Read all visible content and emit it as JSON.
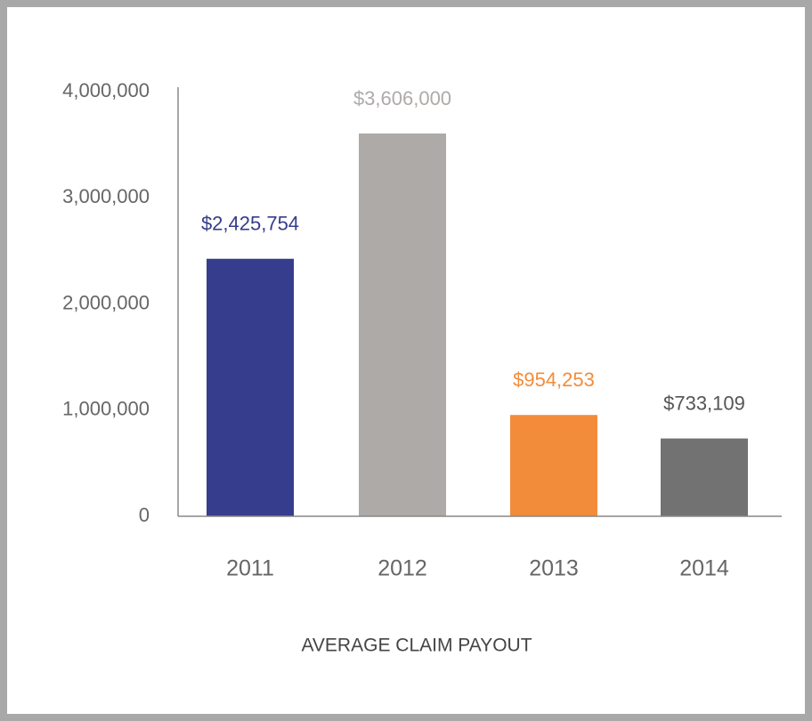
{
  "chart_data": {
    "type": "bar",
    "categories": [
      "2011",
      "2012",
      "2013",
      "2014"
    ],
    "values": [
      2425754,
      3606000,
      954253,
      733109
    ],
    "value_labels": [
      "$2,425,754",
      "$3,606,000",
      "$954,253",
      "$733,109"
    ],
    "colors": [
      "#363d8c",
      "#aeaaa8",
      "#f28c3a",
      "#727272"
    ],
    "xlabel": "AVERAGE CLAIM PAYOUT",
    "ylim": [
      0,
      4000000
    ],
    "yticks": [
      0,
      {
        "value": 1000000,
        "label": "1,000,000"
      },
      {
        "value": 2000000,
        "label": "2,000,000"
      },
      {
        "value": 3000000,
        "label": "3,000,000"
      },
      {
        "value": 4000000,
        "label": "4,000,000"
      }
    ],
    "grid": false
  }
}
